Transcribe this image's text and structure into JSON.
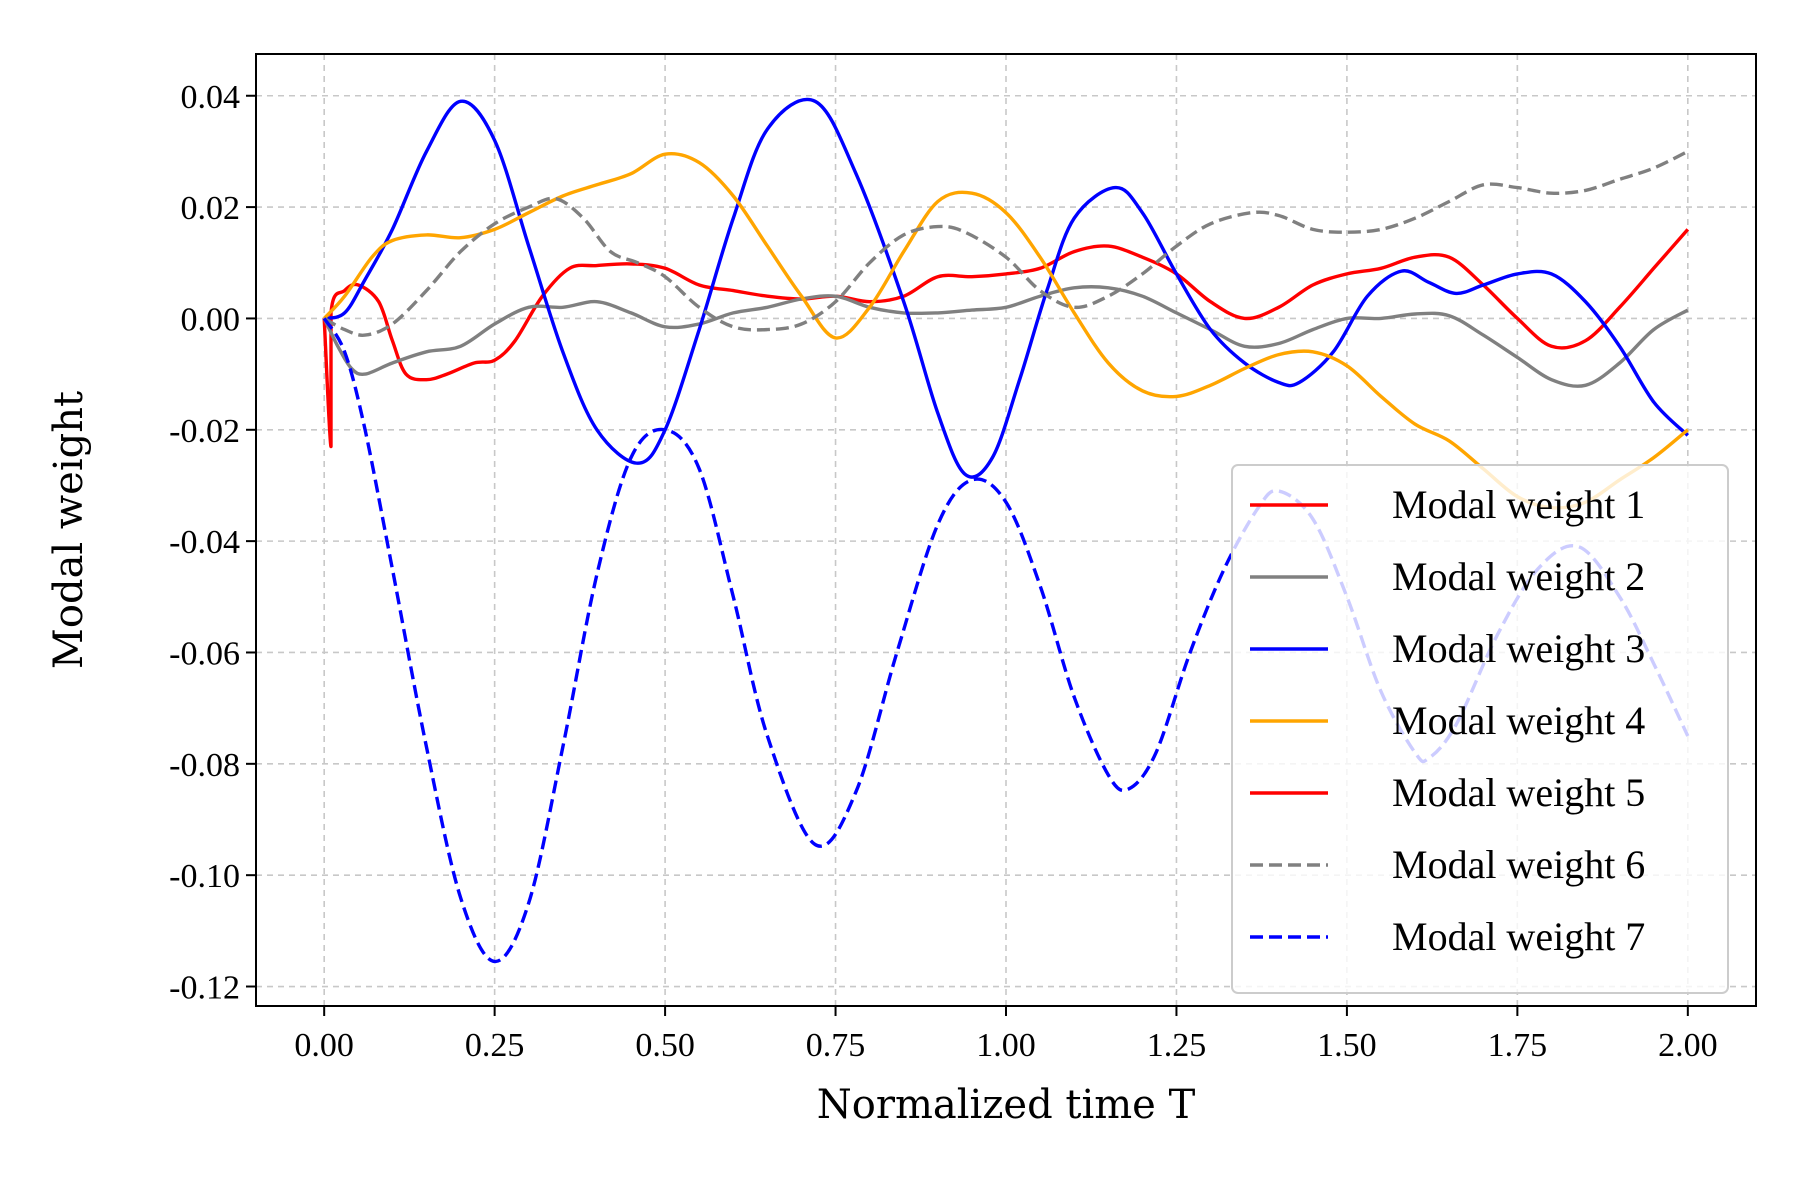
{
  "chart_data": {
    "type": "line",
    "title": "",
    "xlabel": "Normalized time T",
    "ylabel": "Modal weight",
    "xlim": [
      -0.1,
      2.1
    ],
    "ylim": [
      -0.1235,
      0.0475
    ],
    "xticks": [
      0.0,
      0.25,
      0.5,
      0.75,
      1.0,
      1.25,
      1.5,
      1.75,
      2.0
    ],
    "xtick_labels": [
      "0.00",
      "0.25",
      "0.50",
      "0.75",
      "1.00",
      "1.25",
      "1.50",
      "1.75",
      "2.00"
    ],
    "yticks": [
      0.04,
      0.02,
      0.0,
      -0.02,
      -0.04,
      -0.06,
      -0.08,
      -0.1,
      -0.12
    ],
    "ytick_labels": [
      "0.04",
      "0.02",
      "0.00",
      "-0.02",
      "-0.04",
      "-0.06",
      "-0.08",
      "-0.10",
      "-0.12"
    ],
    "grid": true,
    "legend_position": "lower-right",
    "series": [
      {
        "name": "Modal weight 1",
        "color": "#ff0000",
        "dash": "solid",
        "x": [
          0.0,
          0.01,
          0.01,
          0.03,
          0.05,
          0.08,
          0.1,
          0.12,
          0.15,
          0.18,
          0.22,
          0.25,
          0.28,
          0.32,
          0.36,
          0.4,
          0.45,
          0.5,
          0.55,
          0.6,
          0.65,
          0.7,
          0.75,
          0.8,
          0.85,
          0.9,
          0.95,
          1.0,
          1.05,
          1.1,
          1.15,
          1.2,
          1.25,
          1.3,
          1.35,
          1.4,
          1.45,
          1.5,
          1.55,
          1.6,
          1.65,
          1.7,
          1.75,
          1.8,
          1.85,
          1.9,
          1.95,
          2.0
        ],
        "y": [
          0.0,
          -0.023,
          0.001,
          0.005,
          0.006,
          0.003,
          -0.004,
          -0.01,
          -0.011,
          -0.01,
          -0.008,
          -0.0075,
          -0.004,
          0.004,
          0.009,
          0.0095,
          0.0098,
          0.009,
          0.006,
          0.005,
          0.004,
          0.0035,
          0.004,
          0.003,
          0.004,
          0.0075,
          0.0075,
          0.008,
          0.009,
          0.012,
          0.013,
          0.011,
          0.008,
          0.003,
          0.0,
          0.002,
          0.006,
          0.008,
          0.009,
          0.011,
          0.011,
          0.006,
          0.0,
          -0.005,
          -0.004,
          0.002,
          0.009,
          0.016
        ]
      },
      {
        "name": "Modal weight 2",
        "color": "#808080",
        "dash": "solid",
        "x": [
          0.0,
          0.02,
          0.04,
          0.06,
          0.1,
          0.15,
          0.2,
          0.25,
          0.3,
          0.35,
          0.4,
          0.45,
          0.5,
          0.55,
          0.6,
          0.65,
          0.7,
          0.75,
          0.8,
          0.85,
          0.9,
          0.95,
          1.0,
          1.05,
          1.1,
          1.15,
          1.2,
          1.25,
          1.3,
          1.35,
          1.4,
          1.45,
          1.5,
          1.55,
          1.6,
          1.65,
          1.7,
          1.75,
          1.8,
          1.85,
          1.9,
          1.95,
          2.0
        ],
        "y": [
          0.0,
          -0.005,
          -0.009,
          -0.01,
          -0.008,
          -0.006,
          -0.005,
          -0.001,
          0.002,
          0.002,
          0.003,
          0.001,
          -0.0015,
          -0.001,
          0.001,
          0.002,
          0.0035,
          0.004,
          0.002,
          0.001,
          0.001,
          0.0015,
          0.002,
          0.004,
          0.0055,
          0.0055,
          0.004,
          0.001,
          -0.002,
          -0.005,
          -0.0045,
          -0.002,
          0.0,
          0.0,
          0.0008,
          0.0005,
          -0.003,
          -0.007,
          -0.011,
          -0.012,
          -0.008,
          -0.002,
          0.0015
        ]
      },
      {
        "name": "Modal weight 3",
        "color": "#0000ff",
        "dash": "solid",
        "x": [
          0.0,
          0.03,
          0.06,
          0.1,
          0.15,
          0.2,
          0.25,
          0.3,
          0.35,
          0.4,
          0.46,
          0.5,
          0.55,
          0.6,
          0.65,
          0.72,
          0.78,
          0.85,
          0.9,
          0.94,
          0.98,
          1.02,
          1.06,
          1.1,
          1.16,
          1.2,
          1.25,
          1.3,
          1.35,
          1.4,
          1.43,
          1.48,
          1.53,
          1.58,
          1.62,
          1.66,
          1.7,
          1.75,
          1.8,
          1.85,
          1.9,
          1.95,
          2.0
        ],
        "y": [
          0.0,
          0.001,
          0.007,
          0.016,
          0.03,
          0.039,
          0.032,
          0.013,
          -0.006,
          -0.02,
          -0.026,
          -0.02,
          -0.002,
          0.018,
          0.034,
          0.039,
          0.026,
          0.003,
          -0.017,
          -0.028,
          -0.025,
          -0.011,
          0.005,
          0.018,
          0.0235,
          0.019,
          0.008,
          -0.002,
          -0.008,
          -0.0115,
          -0.0115,
          -0.006,
          0.004,
          0.0085,
          0.0065,
          0.0045,
          0.006,
          0.008,
          0.008,
          0.003,
          -0.005,
          -0.015,
          -0.021
        ]
      },
      {
        "name": "Modal weight 4",
        "color": "#ffa500",
        "dash": "solid",
        "x": [
          0.0,
          0.03,
          0.07,
          0.1,
          0.15,
          0.2,
          0.25,
          0.3,
          0.35,
          0.4,
          0.45,
          0.5,
          0.55,
          0.6,
          0.65,
          0.7,
          0.75,
          0.8,
          0.85,
          0.9,
          0.95,
          1.0,
          1.05,
          1.1,
          1.15,
          1.2,
          1.25,
          1.3,
          1.35,
          1.4,
          1.45,
          1.5,
          1.55,
          1.6,
          1.65,
          1.7,
          1.75,
          1.8,
          1.85,
          1.9,
          1.95,
          2.0
        ],
        "y": [
          0.0,
          0.004,
          0.011,
          0.014,
          0.015,
          0.0145,
          0.016,
          0.019,
          0.022,
          0.024,
          0.026,
          0.0295,
          0.028,
          0.022,
          0.013,
          0.004,
          -0.0035,
          0.002,
          0.012,
          0.021,
          0.0225,
          0.019,
          0.011,
          0.001,
          -0.008,
          -0.013,
          -0.014,
          -0.012,
          -0.009,
          -0.0065,
          -0.006,
          -0.0085,
          -0.014,
          -0.019,
          -0.022,
          -0.027,
          -0.032,
          -0.034,
          -0.033,
          -0.029,
          -0.025,
          -0.02
        ]
      },
      {
        "name": "Modal weight 5",
        "color": "#ff0000",
        "dash": "solid",
        "x": [],
        "y": []
      },
      {
        "name": "Modal weight 6",
        "color": "#808080",
        "dash": "dashed",
        "x": [
          0.0,
          0.03,
          0.06,
          0.1,
          0.15,
          0.2,
          0.25,
          0.3,
          0.34,
          0.38,
          0.42,
          0.46,
          0.5,
          0.55,
          0.6,
          0.65,
          0.7,
          0.75,
          0.8,
          0.85,
          0.9,
          0.94,
          1.0,
          1.05,
          1.1,
          1.15,
          1.2,
          1.25,
          1.3,
          1.36,
          1.4,
          1.45,
          1.5,
          1.55,
          1.6,
          1.65,
          1.7,
          1.75,
          1.8,
          1.85,
          1.9,
          1.95,
          2.0
        ],
        "y": [
          0.0,
          -0.002,
          -0.003,
          -0.001,
          0.005,
          0.012,
          0.017,
          0.02,
          0.0215,
          0.018,
          0.012,
          0.01,
          0.0075,
          0.002,
          -0.0015,
          -0.002,
          -0.001,
          0.003,
          0.01,
          0.015,
          0.0165,
          0.0155,
          0.011,
          0.005,
          0.002,
          0.004,
          0.008,
          0.013,
          0.017,
          0.019,
          0.0185,
          0.016,
          0.0155,
          0.016,
          0.018,
          0.021,
          0.024,
          0.0235,
          0.0225,
          0.023,
          0.025,
          0.027,
          0.03
        ]
      },
      {
        "name": "Modal weight 7",
        "color": "#0000ff",
        "dash": "dashed",
        "x": [
          0.0,
          0.03,
          0.06,
          0.1,
          0.15,
          0.2,
          0.25,
          0.3,
          0.35,
          0.4,
          0.45,
          0.5,
          0.55,
          0.6,
          0.65,
          0.72,
          0.78,
          0.84,
          0.9,
          0.95,
          1.0,
          1.05,
          1.1,
          1.15,
          1.18,
          1.22,
          1.27,
          1.32,
          1.37,
          1.4,
          1.45,
          1.5,
          1.55,
          1.6,
          1.62,
          1.66,
          1.72,
          1.78,
          1.84,
          1.9,
          1.95,
          2.0
        ],
        "y": [
          0.0,
          -0.006,
          -0.02,
          -0.045,
          -0.077,
          -0.104,
          -0.1155,
          -0.105,
          -0.077,
          -0.046,
          -0.025,
          -0.02,
          -0.027,
          -0.05,
          -0.075,
          -0.0945,
          -0.085,
          -0.06,
          -0.037,
          -0.029,
          -0.033,
          -0.048,
          -0.068,
          -0.082,
          -0.0845,
          -0.078,
          -0.06,
          -0.045,
          -0.034,
          -0.031,
          -0.036,
          -0.05,
          -0.067,
          -0.078,
          -0.079,
          -0.073,
          -0.057,
          -0.045,
          -0.041,
          -0.05,
          -0.062,
          -0.075
        ]
      }
    ]
  }
}
